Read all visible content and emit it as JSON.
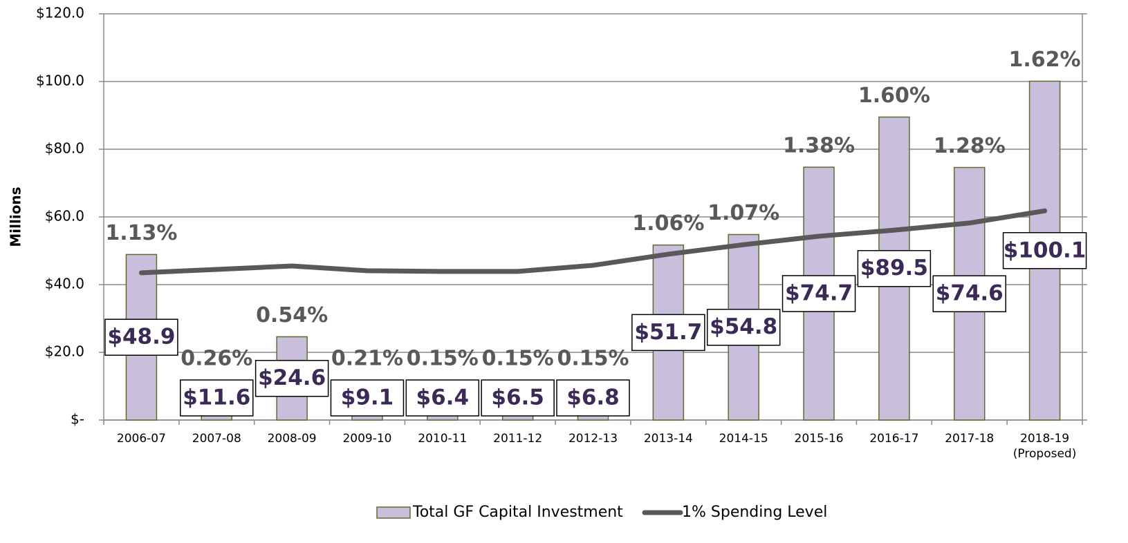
{
  "chart_data": {
    "type": "bar",
    "y_label": "Millions",
    "categories": [
      "2006-07",
      "2007-08",
      "2008-09",
      "2009-10",
      "2010-11",
      "2011-12",
      "2012-13",
      "2013-14",
      "2014-15",
      "2015-16",
      "2016-17",
      "2017-18",
      "2018-19\n(Proposed)"
    ],
    "series": [
      {
        "name": "Total GF Capital Investment",
        "type": "bar",
        "color": "#c9bfdc",
        "values": [
          48.9,
          11.6,
          24.6,
          9.1,
          6.4,
          6.5,
          6.8,
          51.7,
          54.8,
          74.7,
          89.5,
          74.6,
          100.1
        ],
        "value_labels": [
          "$48.9",
          "$11.6",
          "$24.6",
          "$9.1",
          "$6.4",
          "$6.5",
          "$6.8",
          "$51.7",
          "$54.8",
          "$74.7",
          "$89.5",
          "$74.6",
          "$100.1"
        ],
        "annotations": [
          "1.13%",
          "0.26%",
          "0.54%",
          "0.21%",
          "0.15%",
          "0.15%",
          "0.15%",
          "1.06%",
          "1.07%",
          "1.38%",
          "1.60%",
          "1.28%",
          "1.62%"
        ]
      },
      {
        "name": "1% Spending Level",
        "type": "line",
        "color": "#595959",
        "values": [
          43.5,
          44.5,
          45.5,
          44.1,
          43.9,
          43.9,
          45.7,
          49.0,
          51.8,
          54.3,
          56.1,
          58.2,
          61.8
        ]
      }
    ],
    "ylim": [
      0,
      120
    ],
    "yticks": [
      {
        "value": 0,
        "label": "$-"
      },
      {
        "value": 20,
        "label": "$20.0"
      },
      {
        "value": 40,
        "label": "$40.0"
      },
      {
        "value": 60,
        "label": "$60.0"
      },
      {
        "value": 80,
        "label": "$80.0"
      },
      {
        "value": 100,
        "label": "$100.0"
      },
      {
        "value": 120,
        "label": "$120.0"
      }
    ],
    "grid": true,
    "legend": "bottom"
  }
}
